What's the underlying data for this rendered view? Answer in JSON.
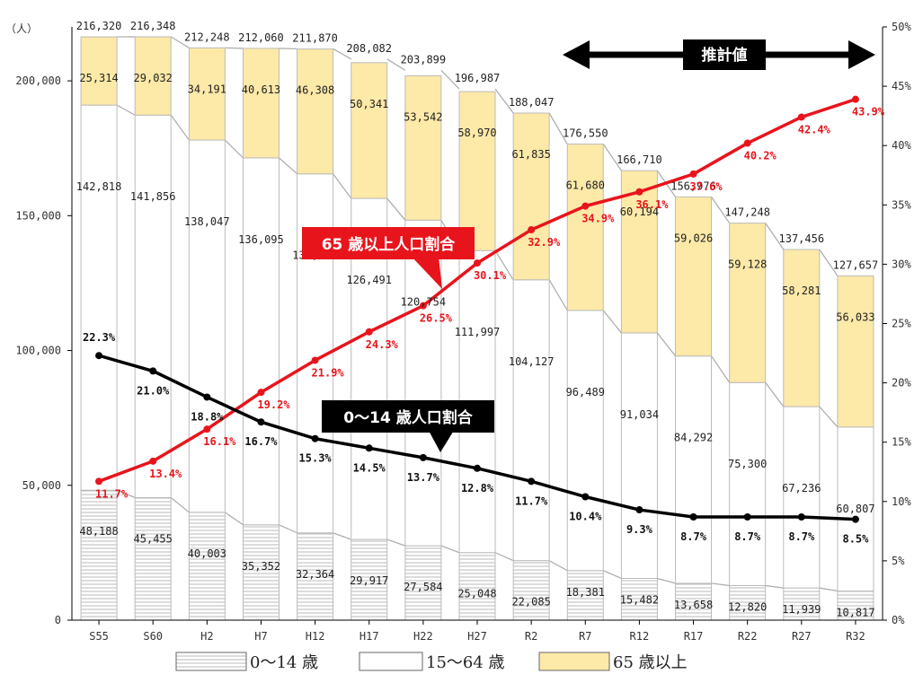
{
  "chart_data": {
    "type": "bar",
    "categories": [
      "S55",
      "S60",
      "H2",
      "H7",
      "H12",
      "H17",
      "H22",
      "H27",
      "R2",
      "R7",
      "R12",
      "R17",
      "R22",
      "R27",
      "R32"
    ],
    "ylabel": "（人）",
    "ylim": [
      0,
      220000
    ],
    "y_ticks": [
      "0",
      "50,000",
      "100,000",
      "150,000",
      "200,000"
    ],
    "y2lim": [
      0,
      50
    ],
    "y2_ticks": [
      "0%",
      "5%",
      "10%",
      "15%",
      "20%",
      "25%",
      "30%",
      "35%",
      "40%",
      "45%",
      "50%"
    ],
    "series": [
      {
        "name": "0～14 歳",
        "values": [
          48188,
          45455,
          40003,
          35352,
          32364,
          29917,
          27584,
          25048,
          22085,
          18381,
          15482,
          13658,
          12820,
          11939,
          10817
        ],
        "labels": [
          "48,188",
          "45,455",
          "40,003",
          "35,352",
          "32,364",
          "29,917",
          "27,584",
          "25,048",
          "22,085",
          "18,381",
          "15,482",
          "13,658",
          "12,820",
          "11,939",
          "10,817"
        ]
      },
      {
        "name": "15～64 歳",
        "values": [
          142818,
          141856,
          138047,
          136095,
          133142,
          126491,
          120754,
          111997,
          104127,
          96489,
          91034,
          84292,
          75300,
          67236,
          60807
        ],
        "labels": [
          "142,818",
          "141,856",
          "138,047",
          "136,095",
          "133,142",
          "126,491",
          "120,754",
          "111,997",
          "104,127",
          "96,489",
          "91,034",
          "84,292",
          "75,300",
          "67,236",
          "60,807"
        ]
      },
      {
        "name": "65 歳以上",
        "values": [
          25314,
          29032,
          34191,
          40613,
          46308,
          50341,
          53542,
          58970,
          61835,
          61680,
          60194,
          59026,
          59128,
          58281,
          56033
        ],
        "labels": [
          "25,314",
          "29,032",
          "34,191",
          "40,613",
          "46,308",
          "50,341",
          "53,542",
          "58,970",
          "61,835",
          "61,680",
          "60,194",
          "59,026",
          "59,128",
          "58,281",
          "56,033"
        ]
      }
    ],
    "totals": {
      "values": [
        216320,
        216348,
        212248,
        212060,
        211870,
        208082,
        203899,
        196987,
        188047,
        176550,
        166710,
        156976,
        147248,
        137456,
        127657
      ],
      "labels": [
        "216,320",
        "216,348",
        "212,248",
        "212,060",
        "211,870",
        "208,082",
        "203,899",
        "196,987",
        "188,047",
        "176,550",
        "166,710",
        "156,976",
        "147,248",
        "137,456",
        "127,657"
      ]
    },
    "lines": [
      {
        "name": "65 歳以上人口割合",
        "color": "#e8141c",
        "axis": "right",
        "values": [
          11.7,
          13.4,
          16.1,
          19.2,
          21.9,
          24.3,
          26.5,
          30.1,
          32.9,
          34.9,
          36.1,
          37.6,
          40.2,
          42.4,
          43.9
        ],
        "labels": [
          "11.7%",
          "13.4%",
          "16.1%",
          "19.2%",
          "21.9%",
          "24.3%",
          "26.5%",
          "30.1%",
          "32.9%",
          "34.9%",
          "36.1%",
          "37.6%",
          "40.2%",
          "42.4%",
          "43.9%"
        ]
      },
      {
        "name": "0～14 歳人口割合",
        "color": "#000000",
        "axis": "right",
        "values": [
          22.3,
          21.0,
          18.8,
          16.7,
          15.3,
          14.5,
          13.7,
          12.8,
          11.7,
          10.4,
          9.3,
          8.7,
          8.7,
          8.7,
          8.5
        ],
        "labels": [
          "22.3%",
          "21.0%",
          "18.8%",
          "16.7%",
          "15.3%",
          "14.5%",
          "13.7%",
          "12.8%",
          "11.7%",
          "10.4%",
          "9.3%",
          "8.7%",
          "8.7%",
          "8.7%",
          "8.5%"
        ]
      }
    ],
    "annotation": "推計値",
    "legend_placement": "bottom",
    "colors": {
      "senior_fill": "#fde9a8",
      "youth_stripe": "#b8b8b8",
      "working_fill": "#ffffff"
    }
  }
}
